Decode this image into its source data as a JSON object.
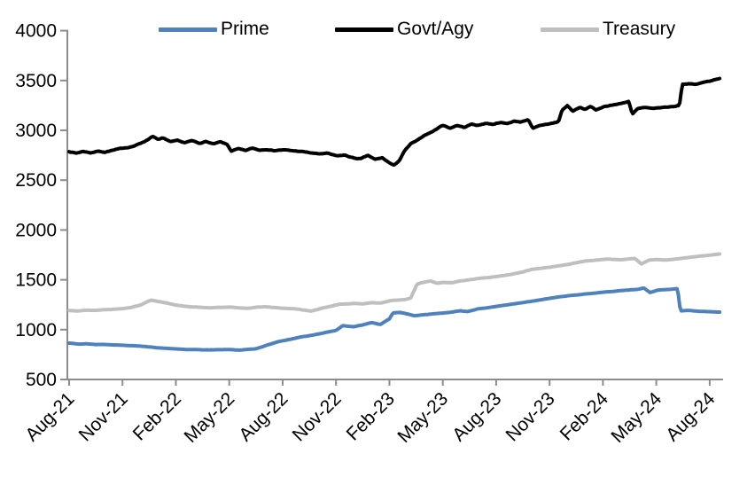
{
  "chart_data": {
    "type": "line",
    "title": "",
    "grid": false,
    "legend_position": "top",
    "x_unit": "months since Aug-21",
    "x_axis": {
      "tick_labels": [
        "Aug-21",
        "Nov-21",
        "Feb-22",
        "May-22",
        "Aug-22",
        "Nov-22",
        "Feb-23",
        "May-23",
        "Aug-23",
        "Nov-23",
        "Feb-24",
        "May-24",
        "Aug-24"
      ],
      "tick_months": [
        0,
        3,
        6,
        9,
        12,
        15,
        18,
        21,
        24,
        27,
        30,
        33,
        36
      ],
      "label_rotation_deg": -45
    },
    "y_axis": {
      "min": 500,
      "max": 4000,
      "step": 500,
      "tick_labels": [
        "500",
        "1000",
        "1500",
        "2000",
        "2500",
        "3000",
        "3500",
        "4000"
      ]
    },
    "series": [
      {
        "name": "Prime",
        "color": "#4F81BD",
        "noise_amp": 2.2,
        "seed": 42,
        "points": [
          [
            0,
            865
          ],
          [
            0.6,
            854
          ],
          [
            1,
            858
          ],
          [
            1.5,
            851
          ],
          [
            2,
            853
          ],
          [
            2.5,
            848
          ],
          [
            3,
            845
          ],
          [
            3.5,
            840
          ],
          [
            4,
            836
          ],
          [
            4.5,
            826
          ],
          [
            5,
            818
          ],
          [
            5.5,
            812
          ],
          [
            6,
            806
          ],
          [
            6.5,
            801
          ],
          [
            7,
            799
          ],
          [
            7.5,
            797
          ],
          [
            8,
            797
          ],
          [
            8.5,
            799
          ],
          [
            9,
            801
          ],
          [
            9.5,
            794
          ],
          [
            10,
            801
          ],
          [
            10.5,
            808
          ],
          [
            11,
            838
          ],
          [
            11.75,
            880
          ],
          [
            12.4,
            902
          ],
          [
            13,
            927
          ],
          [
            14,
            956
          ],
          [
            15,
            992
          ],
          [
            15.4,
            1040
          ],
          [
            16,
            1028
          ],
          [
            16.5,
            1046
          ],
          [
            17,
            1070
          ],
          [
            17.5,
            1052
          ],
          [
            18,
            1108
          ],
          [
            18.2,
            1170
          ],
          [
            18.6,
            1173
          ],
          [
            19,
            1158
          ],
          [
            19.4,
            1140
          ],
          [
            20,
            1152
          ],
          [
            20.5,
            1160
          ],
          [
            21,
            1168
          ],
          [
            21.5,
            1175
          ],
          [
            22,
            1190
          ],
          [
            22.4,
            1182
          ],
          [
            23,
            1210
          ],
          [
            23.5,
            1218
          ],
          [
            24,
            1232
          ],
          [
            24.5,
            1244
          ],
          [
            25,
            1257
          ],
          [
            25.5,
            1270
          ],
          [
            26,
            1284
          ],
          [
            26.5,
            1298
          ],
          [
            27,
            1313
          ],
          [
            27.5,
            1327
          ],
          [
            28,
            1340
          ],
          [
            28.5,
            1349
          ],
          [
            29,
            1357
          ],
          [
            29.5,
            1366
          ],
          [
            30,
            1376
          ],
          [
            30.5,
            1384
          ],
          [
            31,
            1392
          ],
          [
            31.5,
            1399
          ],
          [
            32,
            1406
          ],
          [
            32.3,
            1418
          ],
          [
            32.65,
            1372
          ],
          [
            33.1,
            1398
          ],
          [
            33.7,
            1403
          ],
          [
            34.2,
            1412
          ],
          [
            34.35,
            1188
          ],
          [
            34.8,
            1194
          ],
          [
            35.4,
            1184
          ],
          [
            36,
            1180
          ],
          [
            36.6,
            1176
          ]
        ]
      },
      {
        "name": "Govt/Agy",
        "color": "#000000",
        "noise_amp": 7.5,
        "seed": 7,
        "points": [
          [
            0,
            2788
          ],
          [
            0.4,
            2772
          ],
          [
            0.8,
            2790
          ],
          [
            1.2,
            2776
          ],
          [
            1.6,
            2792
          ],
          [
            2,
            2784
          ],
          [
            2.4,
            2800
          ],
          [
            2.8,
            2812
          ],
          [
            3.2,
            2825
          ],
          [
            3.6,
            2842
          ],
          [
            4,
            2868
          ],
          [
            4.4,
            2905
          ],
          [
            4.7,
            2945
          ],
          [
            5,
            2908
          ],
          [
            5.3,
            2922
          ],
          [
            5.7,
            2880
          ],
          [
            6.1,
            2895
          ],
          [
            6.5,
            2872
          ],
          [
            6.9,
            2892
          ],
          [
            7.3,
            2868
          ],
          [
            7.7,
            2888
          ],
          [
            8.1,
            2862
          ],
          [
            8.5,
            2880
          ],
          [
            8.9,
            2852
          ],
          [
            9.1,
            2790
          ],
          [
            9.5,
            2812
          ],
          [
            9.9,
            2792
          ],
          [
            10.3,
            2818
          ],
          [
            10.7,
            2800
          ],
          [
            11.1,
            2812
          ],
          [
            11.5,
            2800
          ],
          [
            12,
            2806
          ],
          [
            12.5,
            2795
          ],
          [
            13,
            2788
          ],
          [
            13.5,
            2775
          ],
          [
            14,
            2762
          ],
          [
            14.5,
            2768
          ],
          [
            15,
            2740
          ],
          [
            15.5,
            2748
          ],
          [
            16,
            2720
          ],
          [
            16.4,
            2714
          ],
          [
            16.8,
            2744
          ],
          [
            17.2,
            2705
          ],
          [
            17.6,
            2720
          ],
          [
            18,
            2672
          ],
          [
            18.25,
            2645
          ],
          [
            18.55,
            2695
          ],
          [
            18.85,
            2792
          ],
          [
            19.2,
            2862
          ],
          [
            19.6,
            2898
          ],
          [
            20,
            2952
          ],
          [
            20.5,
            2995
          ],
          [
            21,
            3055
          ],
          [
            21.4,
            3022
          ],
          [
            21.8,
            3052
          ],
          [
            22.2,
            3030
          ],
          [
            22.6,
            3062
          ],
          [
            23,
            3050
          ],
          [
            23.4,
            3072
          ],
          [
            23.8,
            3062
          ],
          [
            24.2,
            3082
          ],
          [
            24.6,
            3068
          ],
          [
            25,
            3092
          ],
          [
            25.4,
            3085
          ],
          [
            25.8,
            3112
          ],
          [
            26.05,
            3018
          ],
          [
            26.4,
            3040
          ],
          [
            26.8,
            3058
          ],
          [
            27.2,
            3072
          ],
          [
            27.5,
            3085
          ],
          [
            27.7,
            3200
          ],
          [
            28,
            3248
          ],
          [
            28.3,
            3192
          ],
          [
            28.7,
            3228
          ],
          [
            29,
            3208
          ],
          [
            29.3,
            3242
          ],
          [
            29.6,
            3200
          ],
          [
            30,
            3235
          ],
          [
            30.4,
            3252
          ],
          [
            30.8,
            3262
          ],
          [
            31.2,
            3280
          ],
          [
            31.45,
            3292
          ],
          [
            31.65,
            3160
          ],
          [
            31.95,
            3215
          ],
          [
            32.3,
            3225
          ],
          [
            32.7,
            3215
          ],
          [
            33.1,
            3222
          ],
          [
            33.5,
            3230
          ],
          [
            34,
            3240
          ],
          [
            34.3,
            3252
          ],
          [
            34.45,
            3465
          ],
          [
            34.8,
            3470
          ],
          [
            35.2,
            3460
          ],
          [
            35.6,
            3478
          ],
          [
            36,
            3495
          ],
          [
            36.6,
            3528
          ]
        ]
      },
      {
        "name": "Treasury",
        "color": "#BFBFBF",
        "noise_amp": 2.4,
        "seed": 13,
        "points": [
          [
            0,
            1192
          ],
          [
            0.5,
            1190
          ],
          [
            1,
            1196
          ],
          [
            1.5,
            1194
          ],
          [
            2,
            1202
          ],
          [
            2.5,
            1206
          ],
          [
            3,
            1212
          ],
          [
            3.5,
            1226
          ],
          [
            4,
            1248
          ],
          [
            4.6,
            1298
          ],
          [
            5,
            1284
          ],
          [
            5.5,
            1266
          ],
          [
            6,
            1244
          ],
          [
            6.5,
            1234
          ],
          [
            7,
            1228
          ],
          [
            7.5,
            1222
          ],
          [
            8,
            1220
          ],
          [
            8.5,
            1224
          ],
          [
            9,
            1226
          ],
          [
            9.5,
            1218
          ],
          [
            10,
            1216
          ],
          [
            10.5,
            1224
          ],
          [
            11,
            1230
          ],
          [
            11.5,
            1222
          ],
          [
            12,
            1214
          ],
          [
            12.7,
            1208
          ],
          [
            13.6,
            1186
          ],
          [
            14.3,
            1218
          ],
          [
            15.2,
            1255
          ],
          [
            16,
            1262
          ],
          [
            16.5,
            1258
          ],
          [
            17,
            1272
          ],
          [
            17.5,
            1268
          ],
          [
            18,
            1290
          ],
          [
            18.5,
            1296
          ],
          [
            18.9,
            1304
          ],
          [
            19.2,
            1316
          ],
          [
            19.55,
            1456
          ],
          [
            19.9,
            1474
          ],
          [
            20.3,
            1488
          ],
          [
            20.7,
            1464
          ],
          [
            21,
            1474
          ],
          [
            21.5,
            1470
          ],
          [
            22,
            1490
          ],
          [
            22.5,
            1500
          ],
          [
            23,
            1514
          ],
          [
            23.5,
            1522
          ],
          [
            24,
            1534
          ],
          [
            24.5,
            1546
          ],
          [
            25,
            1560
          ],
          [
            25.5,
            1578
          ],
          [
            26,
            1604
          ],
          [
            26.5,
            1616
          ],
          [
            27,
            1628
          ],
          [
            27.5,
            1640
          ],
          [
            28,
            1654
          ],
          [
            28.5,
            1672
          ],
          [
            29,
            1688
          ],
          [
            29.7,
            1700
          ],
          [
            30.3,
            1708
          ],
          [
            31,
            1700
          ],
          [
            31.8,
            1714
          ],
          [
            32.15,
            1658
          ],
          [
            32.6,
            1698
          ],
          [
            33,
            1704
          ],
          [
            33.5,
            1698
          ],
          [
            34,
            1708
          ],
          [
            34.5,
            1718
          ],
          [
            35,
            1728
          ],
          [
            35.6,
            1740
          ],
          [
            36.2,
            1750
          ],
          [
            36.6,
            1760
          ]
        ]
      }
    ],
    "colors": {
      "axis": "#8C8C8C",
      "text": "#000000",
      "background": "#FFFFFF"
    }
  }
}
